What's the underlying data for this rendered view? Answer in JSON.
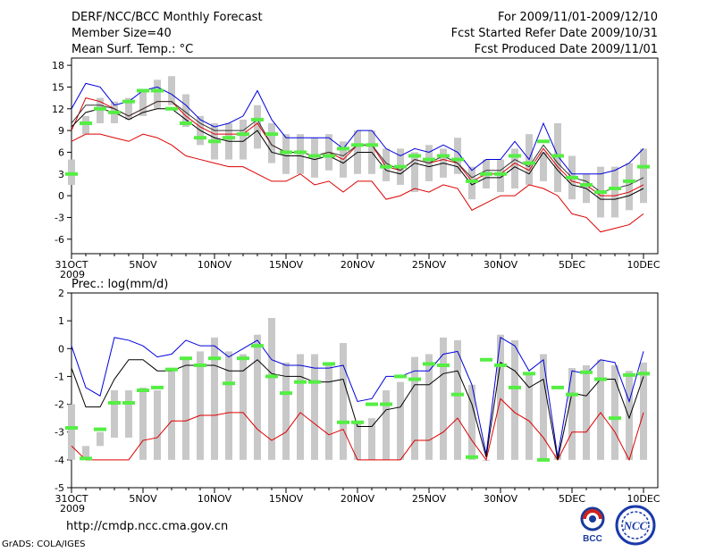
{
  "header": {
    "title": "DERF/NCC/BCC Monthly Forecast",
    "member_size": "Member Size=40",
    "variable": "Mean Surf. Temp.: °C",
    "period": "For 2009/11/01-2009/12/10",
    "started": "Fcst Started Refer Date 2009/10/31",
    "produced": "Fcst Produced Date 2009/11/01"
  },
  "footer": {
    "url": "http://cmdp.ncc.cma.gov.cn",
    "grads": "GrADS: COLA/IGES",
    "logo_bcc_text": "BCC",
    "logo_ncc_text": "NCC"
  },
  "colors": {
    "box": "#c8c8c8",
    "mean": "#000000",
    "upper": "#0000dd",
    "lower": "#dd0000",
    "marker": "#55ee44"
  },
  "chart_data": [
    {
      "type": "box_plume",
      "title": "Mean Surf. Temp.: °C",
      "ylim": [
        -8,
        19
      ],
      "yticks": [
        -6,
        -3,
        0,
        3,
        6,
        9,
        12,
        15,
        18
      ],
      "xlim": [
        0,
        41
      ],
      "xticks": [
        {
          "x": 0,
          "label": "31OCT",
          "sub": "2009"
        },
        {
          "x": 5,
          "label": "5NOV"
        },
        {
          "x": 10,
          "label": "10NOV"
        },
        {
          "x": 15,
          "label": "15NOV"
        },
        {
          "x": 20,
          "label": "20NOV"
        },
        {
          "x": 25,
          "label": "25NOV"
        },
        {
          "x": 30,
          "label": "30NOV"
        },
        {
          "x": 35,
          "label": "5DEC"
        },
        {
          "x": 40,
          "label": "10DEC"
        }
      ],
      "days": [
        0,
        1,
        2,
        3,
        4,
        5,
        6,
        7,
        8,
        9,
        10,
        11,
        12,
        13,
        14,
        15,
        16,
        17,
        18,
        19,
        20,
        21,
        22,
        23,
        24,
        25,
        26,
        27,
        28,
        29,
        30,
        31,
        32,
        33,
        34,
        35,
        36,
        37,
        38,
        39,
        40
      ],
      "box_low": [
        1.5,
        8.5,
        10,
        10,
        10.5,
        11,
        12,
        12.5,
        9.5,
        7,
        5,
        5,
        5,
        6.5,
        4.5,
        3,
        3,
        2.5,
        3.5,
        2.5,
        3,
        3,
        2,
        1.5,
        0.5,
        2,
        2.5,
        3,
        -0.5,
        1,
        0.5,
        1,
        1.5,
        2,
        0.5,
        -0.5,
        -1,
        -3,
        -3,
        -2,
        -1
      ],
      "box_high": [
        5,
        11,
        13.5,
        13,
        13.5,
        14.5,
        16,
        16.5,
        14,
        11,
        10,
        10,
        10.5,
        12.5,
        10,
        8.5,
        8.5,
        8,
        8.5,
        7.5,
        9,
        9,
        6.5,
        6.5,
        6,
        7,
        6.5,
        8,
        4,
        5,
        5,
        6.5,
        8.5,
        6,
        10,
        5.5,
        3,
        4,
        4,
        4.5,
        6.5
      ],
      "markers": [
        3,
        10,
        12,
        11.5,
        13,
        14.5,
        14.5,
        12,
        10,
        8,
        7.5,
        8,
        8.5,
        10.5,
        8.5,
        6,
        6,
        5.5,
        5.5,
        6.5,
        7,
        7,
        4,
        4,
        5.5,
        5,
        5.5,
        5,
        2,
        3,
        3,
        5.5,
        4.5,
        7.5,
        5.5,
        2.5,
        1.5,
        0.5,
        1,
        2,
        4
      ],
      "mean": [
        9.5,
        11.5,
        12,
        11.5,
        10.5,
        11.5,
        12,
        12,
        10.5,
        9,
        8,
        7.5,
        7.5,
        9,
        6,
        5.5,
        5.5,
        5,
        5.5,
        4.5,
        6,
        6,
        3.5,
        3,
        4.5,
        4,
        4.5,
        4,
        1.5,
        2.5,
        2.5,
        4,
        3,
        6,
        3.5,
        1.5,
        1,
        -0.5,
        -0.5,
        0,
        1
      ],
      "upper": [
        12,
        15.5,
        15,
        12.5,
        13,
        14.5,
        15,
        14,
        12.5,
        10.5,
        9.5,
        10,
        11,
        14.5,
        10.5,
        8,
        8,
        8,
        8,
        6.5,
        9,
        9,
        6.5,
        5.5,
        6.5,
        6,
        7,
        6,
        3.5,
        5,
        5,
        7.5,
        5,
        10,
        5.5,
        3,
        3,
        3,
        3.5,
        4.5,
        6.5
      ],
      "lower": [
        7.5,
        8.5,
        8.5,
        8,
        7.5,
        8.5,
        8,
        7,
        5.5,
        5,
        4.5,
        4,
        4,
        3,
        2,
        2,
        3,
        1.5,
        2,
        0.5,
        2,
        2,
        -0.5,
        0,
        1,
        0.5,
        1.5,
        1,
        -2,
        -1,
        0,
        0,
        1.5,
        1,
        0,
        -2.5,
        -3,
        -5,
        -4.5,
        -4,
        -2.5
      ],
      "red": [
        9,
        13.5,
        13,
        12,
        11,
        12,
        13,
        13,
        11,
        9.5,
        8.5,
        8.5,
        8.5,
        10,
        7,
        6,
        6,
        5.5,
        6,
        5,
        7,
        7,
        4,
        3.5,
        5,
        4.5,
        5,
        4.5,
        2,
        3,
        3,
        4.5,
        3.5,
        6.5,
        4,
        2,
        1.5,
        0,
        0,
        0.5,
        1.5
      ],
      "dark": [
        10,
        12.5,
        12.5,
        12,
        11,
        12,
        13,
        13,
        11.5,
        10,
        9,
        9,
        9,
        10.5,
        7,
        6,
        6,
        5.5,
        6,
        5.5,
        7,
        7,
        4.5,
        3.5,
        5,
        4.5,
        5.5,
        4.5,
        2.5,
        3.5,
        3.5,
        5,
        4,
        7,
        4.5,
        2.5,
        2,
        0.5,
        1,
        1.5,
        2.5
      ]
    },
    {
      "type": "box_plume",
      "title": "Prec.: log(mm/d)",
      "ylim": [
        -5,
        2
      ],
      "yticks": [
        -5,
        -4,
        -3,
        -2,
        -1,
        0,
        1,
        2
      ],
      "xlim": [
        0,
        41
      ],
      "xticks": [
        {
          "x": 0,
          "label": "31OCT",
          "sub": "2009"
        },
        {
          "x": 5,
          "label": "5NOV"
        },
        {
          "x": 10,
          "label": "10NOV"
        },
        {
          "x": 15,
          "label": "15NOV"
        },
        {
          "x": 20,
          "label": "20NOV"
        },
        {
          "x": 25,
          "label": "25NOV"
        },
        {
          "x": 30,
          "label": "30NOV"
        },
        {
          "x": 35,
          "label": "5DEC"
        },
        {
          "x": 40,
          "label": "10DEC"
        }
      ],
      "days": [
        0,
        1,
        2,
        3,
        4,
        5,
        6,
        7,
        8,
        9,
        10,
        11,
        12,
        13,
        14,
        15,
        16,
        17,
        18,
        19,
        20,
        21,
        22,
        23,
        24,
        25,
        26,
        27,
        28,
        29,
        30,
        31,
        32,
        33,
        34,
        35,
        36,
        37,
        38,
        39,
        40
      ],
      "box_low": [
        -4,
        -4,
        -3.5,
        -3.2,
        -3.2,
        -4,
        -4,
        -4,
        -4,
        -4,
        -4,
        -4,
        -4,
        -4,
        -4,
        -4,
        -4,
        -4,
        -4,
        -4,
        -4,
        -4,
        -4,
        -4,
        -4,
        -4,
        -4,
        -4,
        -4,
        -4,
        -4,
        -4,
        -4,
        -4,
        -4,
        -4,
        -4,
        -4,
        -4,
        -4,
        -4
      ],
      "box_high": [
        -2,
        -3.5,
        -3,
        -1.5,
        -1.5,
        -1.4,
        -1.5,
        -0.7,
        -0.3,
        -0.1,
        0.4,
        -0.1,
        -0.2,
        0.5,
        1.1,
        -0.5,
        -0.2,
        -0.2,
        -0.5,
        0.2,
        -2.7,
        -2.5,
        -1.5,
        -1.2,
        -0.3,
        -0.2,
        0.4,
        0.3,
        -1.3,
        -4,
        0.5,
        0.3,
        -0.9,
        -0.2,
        -3.8,
        -0.7,
        -0.6,
        -0.4,
        -0.6,
        -0.8,
        -0.5
      ],
      "markers": [
        -2.85,
        -3.95,
        -2.9,
        -1.95,
        -1.95,
        -1.5,
        -1.4,
        -0.75,
        -0.35,
        -0.6,
        -0.35,
        -1.25,
        -0.35,
        0.1,
        -1,
        -1.6,
        -1.2,
        -1.2,
        -0.55,
        -2.65,
        -2.65,
        -2,
        -2,
        -1,
        -1.1,
        -0.55,
        -0.6,
        -1.65,
        -3.9,
        -0.4,
        -0.6,
        -1.4,
        -0.9,
        -4,
        -1.4,
        -1.65,
        -0.85,
        -1.1,
        -2.5,
        -0.95,
        -0.9
      ],
      "mean": [
        -0.7,
        -2.1,
        -2.1,
        -1.1,
        -0.4,
        -0.4,
        -0.8,
        -0.8,
        -0.6,
        -0.6,
        -0.6,
        -0.8,
        -0.8,
        -0.4,
        -0.9,
        -1,
        -1,
        -1.2,
        -1.2,
        -1.1,
        -2.8,
        -2.8,
        -2.2,
        -2.1,
        -1.3,
        -1.3,
        -0.9,
        -0.8,
        -2,
        -3.9,
        -0.5,
        -0.8,
        -1.4,
        -1.1,
        -4,
        -1.6,
        -1.7,
        -1.1,
        -1.1,
        -2.5,
        -1
      ],
      "upper": [
        0.1,
        -1.4,
        -1.7,
        0.4,
        0.3,
        0.1,
        -0.3,
        -0.2,
        0.3,
        0.1,
        0.1,
        -0.3,
        0,
        0.3,
        -0.4,
        -0.6,
        -0.6,
        -0.7,
        -0.7,
        -0.6,
        -1.9,
        -1.8,
        -1,
        -1,
        -0.8,
        -0.8,
        -0.2,
        -0.1,
        -1.3,
        -3.8,
        0.4,
        0.1,
        -0.8,
        -0.4,
        -3.9,
        -0.8,
        -0.9,
        -0.4,
        -0.5,
        -1.9,
        -0.1
      ],
      "lower": [
        -3.5,
        -4,
        -4,
        -4,
        -4,
        -3.3,
        -3.2,
        -2.6,
        -2.6,
        -2.4,
        -2.4,
        -2.3,
        -2.3,
        -2.9,
        -3.3,
        -3,
        -2.3,
        -2.7,
        -3.1,
        -2.9,
        -4,
        -4,
        -4,
        -4,
        -3.3,
        -3.3,
        -3,
        -2.5,
        -3.3,
        -4,
        -1.8,
        -2.3,
        -2.6,
        -3.2,
        -4,
        -3,
        -3,
        -2.3,
        -3,
        -4,
        -2.3
      ]
    }
  ]
}
